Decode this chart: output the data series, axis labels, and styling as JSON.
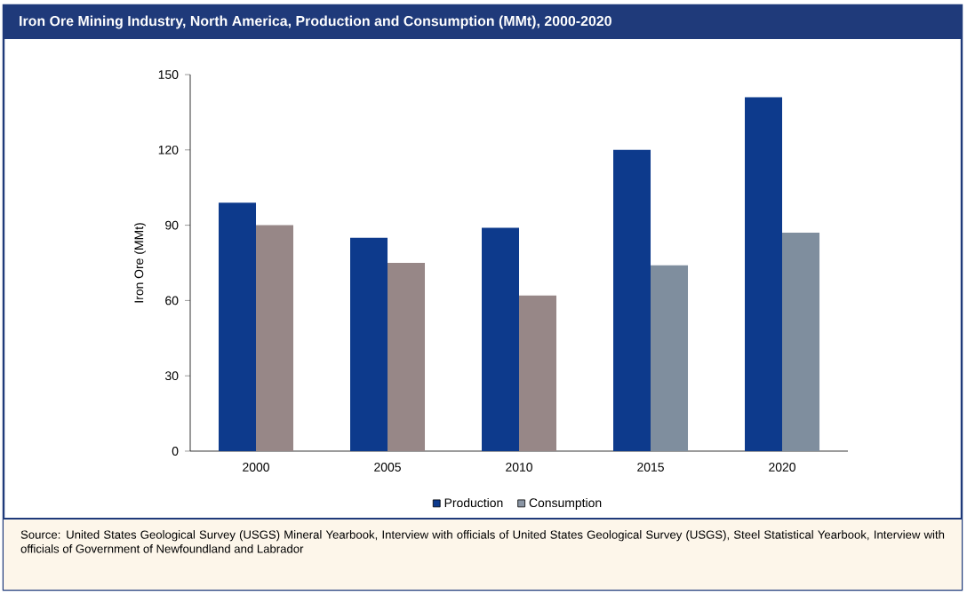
{
  "chart_data": {
    "type": "bar",
    "title": "Iron Ore Mining Industry, North America, Production and Consumption (MMt), 2000-2020",
    "ylabel": "Iron Ore (MMt)",
    "categories": [
      "2000",
      "2005",
      "2010",
      "2015",
      "2020"
    ],
    "series": [
      {
        "name": "Production",
        "color": "#0d3a8c",
        "values": [
          99,
          85,
          89,
          120,
          141
        ]
      },
      {
        "name": "Consumption",
        "color": "#8a95a4",
        "colors": [
          "#978787",
          "#978787",
          "#978787",
          "#7f8e9e",
          "#7f8e9e"
        ],
        "values": [
          90,
          75,
          62,
          74,
          87
        ]
      }
    ],
    "ylim": [
      0,
      150
    ],
    "yticks": [
      0,
      30,
      60,
      90,
      120,
      150
    ],
    "grid": false,
    "legend": "bottom",
    "annotations": [
      "Source: United States Geological Survey (USGS) Mineral Yearbook, Interview with officials of United States Geological Survey (USGS), Steel Statistical Yearbook, Interview with officials of Government of Newfoundland and Labrador"
    ]
  }
}
